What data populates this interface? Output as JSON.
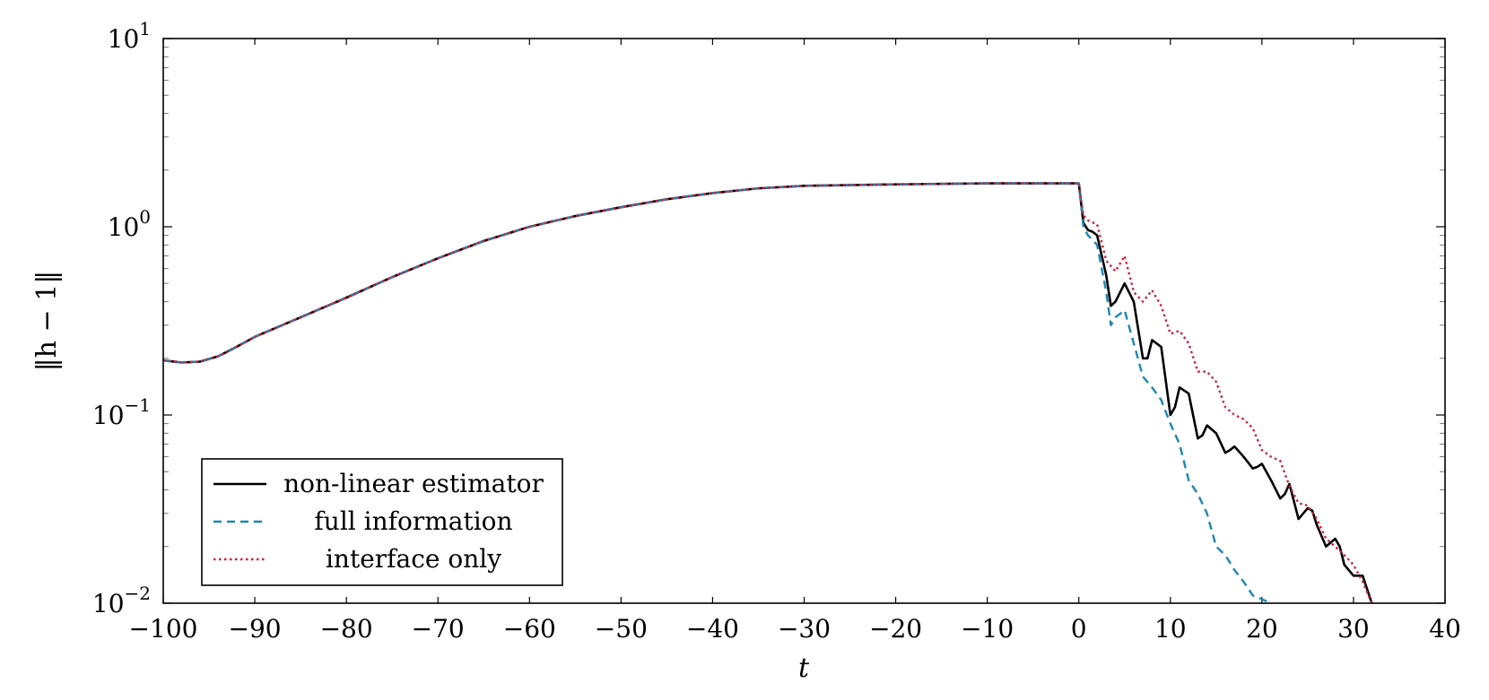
{
  "chart_data": {
    "type": "line",
    "title": "",
    "xlabel": "t",
    "ylabel": "‖h − 1‖",
    "x_scale": "linear",
    "y_scale": "log",
    "xlim": [
      -100,
      40
    ],
    "ylim": [
      0.01,
      10
    ],
    "grid": false,
    "legend_position": "bottom-left",
    "x_ticks": [
      -100,
      -90,
      -80,
      -70,
      -60,
      -50,
      -40,
      -30,
      -20,
      -10,
      0,
      10,
      20,
      30,
      40
    ],
    "x_tick_labels": [
      "−100",
      "−90",
      "−80",
      "−70",
      "−60",
      "−50",
      "−40",
      "−30",
      "−20",
      "−10",
      "0",
      "10",
      "20",
      "30",
      "40"
    ],
    "y_ticks": [
      {
        "value": 0.01,
        "base": "10",
        "exp": "−2"
      },
      {
        "value": 0.1,
        "base": "10",
        "exp": "−1"
      },
      {
        "value": 1,
        "base": "10",
        "exp": "0"
      },
      {
        "value": 10,
        "base": "10",
        "exp": "1"
      }
    ],
    "series": [
      {
        "name": "non-linear estimator",
        "color": "#000000",
        "style": "solid",
        "x": [
          -100,
          -98,
          -96,
          -94,
          -92,
          -90,
          -85,
          -80,
          -75,
          -70,
          -65,
          -60,
          -55,
          -50,
          -45,
          -40,
          -35,
          -30,
          -20,
          -10,
          0,
          0.5,
          1,
          1.5,
          2,
          3,
          3.5,
          4,
          5,
          6,
          7,
          7.5,
          8,
          9,
          10,
          10.5,
          11,
          12,
          13,
          13.5,
          14,
          15,
          16,
          16.5,
          17,
          18,
          19,
          19.5,
          20,
          21,
          22,
          22.5,
          23,
          24,
          25,
          25.5,
          26,
          27,
          28,
          28.5,
          29,
          30,
          31,
          32
        ],
        "y": [
          0.195,
          0.19,
          0.192,
          0.205,
          0.23,
          0.26,
          0.33,
          0.42,
          0.54,
          0.68,
          0.84,
          1.0,
          1.14,
          1.27,
          1.4,
          1.51,
          1.6,
          1.65,
          1.68,
          1.7,
          1.7,
          1.05,
          0.96,
          0.94,
          0.9,
          0.55,
          0.38,
          0.4,
          0.5,
          0.4,
          0.2,
          0.2,
          0.25,
          0.23,
          0.1,
          0.11,
          0.14,
          0.13,
          0.075,
          0.078,
          0.088,
          0.08,
          0.063,
          0.065,
          0.068,
          0.06,
          0.052,
          0.053,
          0.055,
          0.045,
          0.036,
          0.038,
          0.043,
          0.028,
          0.032,
          0.031,
          0.026,
          0.02,
          0.022,
          0.02,
          0.016,
          0.014,
          0.014,
          0.01
        ]
      },
      {
        "name": "full information",
        "color": "#1a87b5",
        "style": "dashed",
        "x": [
          -100,
          -98,
          -96,
          -94,
          -92,
          -90,
          -85,
          -80,
          -75,
          -70,
          -65,
          -60,
          -55,
          -50,
          -45,
          -40,
          -35,
          -30,
          -20,
          -10,
          0,
          0.5,
          1,
          1.5,
          2,
          3,
          3.5,
          4,
          5,
          6,
          7,
          8,
          9,
          10,
          11,
          12,
          13,
          14,
          15,
          16,
          17,
          18,
          19,
          20,
          21
        ],
        "y": [
          0.195,
          0.19,
          0.192,
          0.205,
          0.23,
          0.26,
          0.33,
          0.42,
          0.54,
          0.68,
          0.84,
          1.0,
          1.14,
          1.27,
          1.4,
          1.51,
          1.6,
          1.65,
          1.68,
          1.7,
          1.7,
          1.0,
          0.9,
          0.85,
          0.8,
          0.45,
          0.3,
          0.33,
          0.36,
          0.24,
          0.16,
          0.14,
          0.12,
          0.09,
          0.07,
          0.045,
          0.038,
          0.03,
          0.02,
          0.018,
          0.015,
          0.013,
          0.011,
          0.0105,
          0.01
        ]
      },
      {
        "name": "interface only",
        "color": "#d21f3c",
        "style": "dotted",
        "x": [
          -100,
          -98,
          -96,
          -94,
          -92,
          -90,
          -85,
          -80,
          -75,
          -70,
          -65,
          -60,
          -55,
          -50,
          -45,
          -40,
          -35,
          -30,
          -20,
          -10,
          0,
          0.5,
          1,
          2,
          3,
          4,
          5,
          6,
          7,
          8,
          9,
          10,
          11,
          12,
          13,
          14,
          15,
          16,
          17,
          18,
          19,
          20,
          21,
          22,
          23,
          24,
          25,
          26,
          27,
          28,
          29,
          30,
          31,
          32
        ],
        "y": [
          0.195,
          0.19,
          0.192,
          0.205,
          0.23,
          0.26,
          0.33,
          0.42,
          0.54,
          0.68,
          0.84,
          1.0,
          1.14,
          1.27,
          1.4,
          1.51,
          1.6,
          1.65,
          1.68,
          1.7,
          1.7,
          1.15,
          1.08,
          1.03,
          0.66,
          0.58,
          0.7,
          0.45,
          0.4,
          0.46,
          0.38,
          0.27,
          0.28,
          0.24,
          0.17,
          0.17,
          0.15,
          0.11,
          0.1,
          0.095,
          0.085,
          0.065,
          0.06,
          0.057,
          0.042,
          0.034,
          0.033,
          0.028,
          0.022,
          0.02,
          0.018,
          0.016,
          0.013,
          0.01
        ]
      }
    ]
  }
}
